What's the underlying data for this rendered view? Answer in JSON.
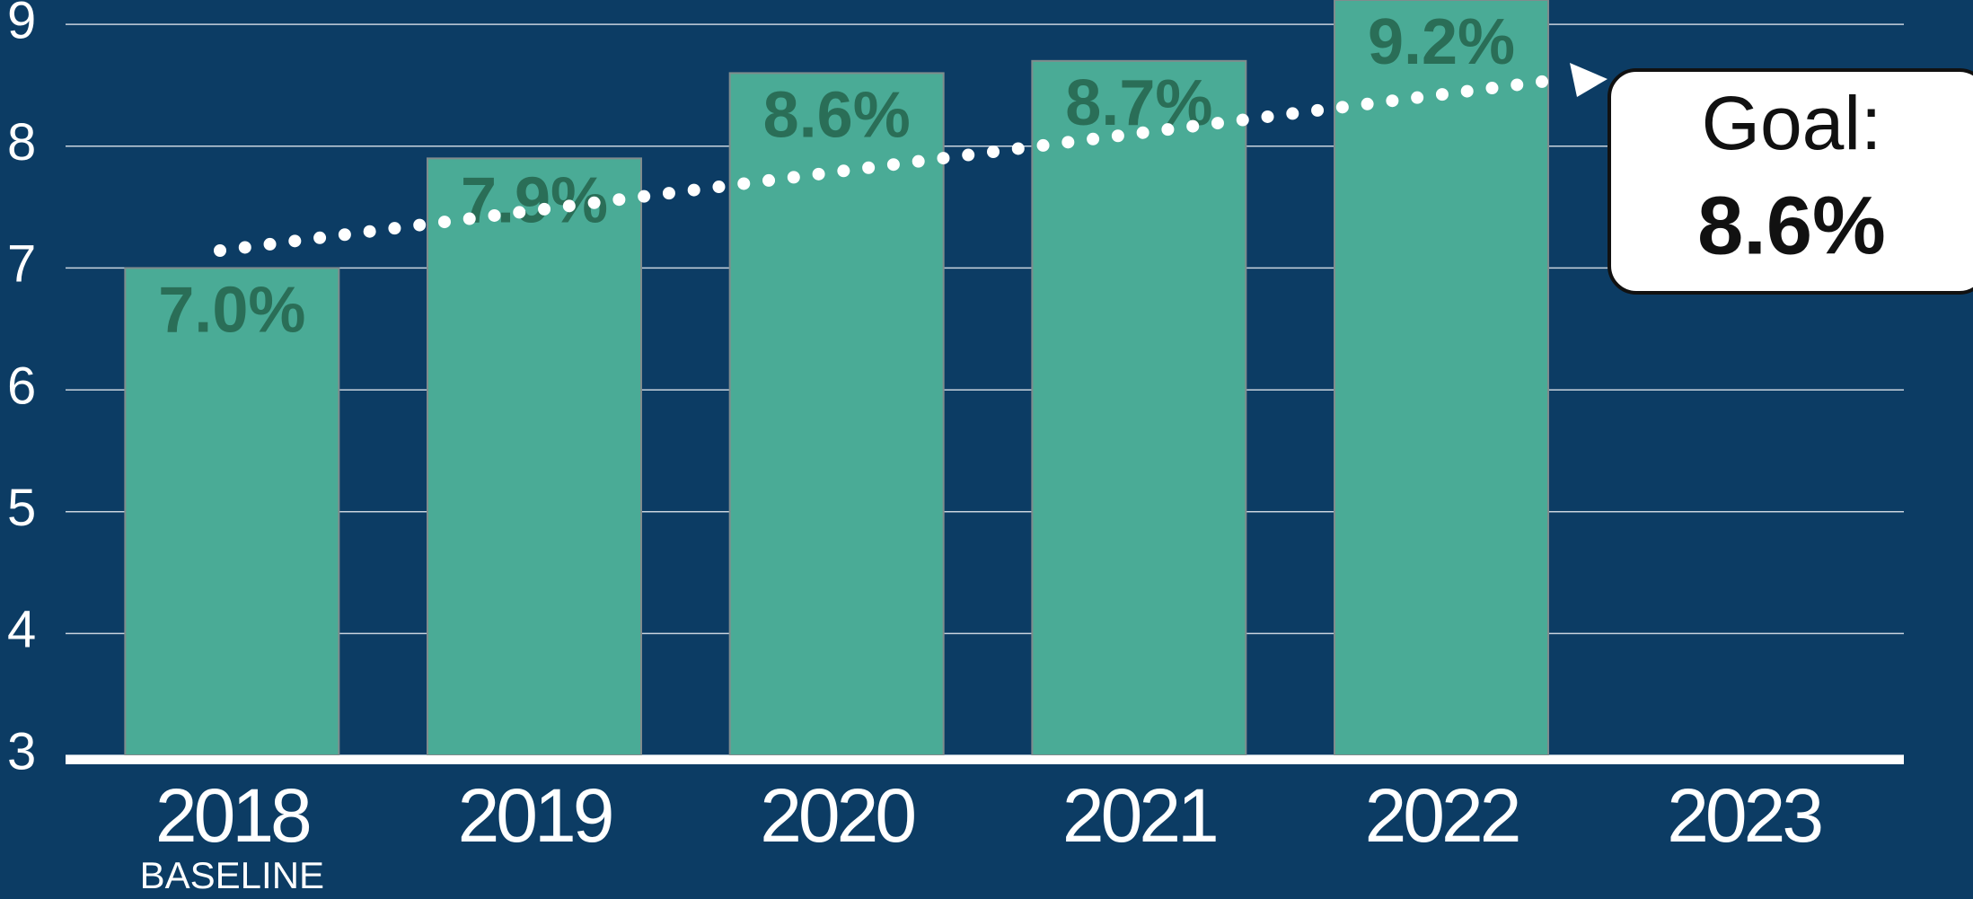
{
  "chart_data": {
    "type": "bar",
    "categories": [
      "2018",
      "2019",
      "2020",
      "2021",
      "2022",
      "2023"
    ],
    "category_sublabels": [
      "BASELINE",
      null,
      null,
      null,
      null,
      null
    ],
    "values": [
      7.0,
      7.9,
      8.6,
      8.7,
      9.2,
      null
    ],
    "value_labels": [
      "7.0%",
      "7.9%",
      "8.6%",
      "8.7%",
      "9.2%",
      null
    ],
    "color": "#4aab96",
    "ylim": [
      3,
      9.2
    ],
    "yticks": [
      3,
      4,
      5,
      6,
      7,
      8,
      9
    ],
    "grid": true,
    "goal": {
      "label": "Goal:",
      "value": 8.6,
      "value_label": "8.6%"
    }
  }
}
